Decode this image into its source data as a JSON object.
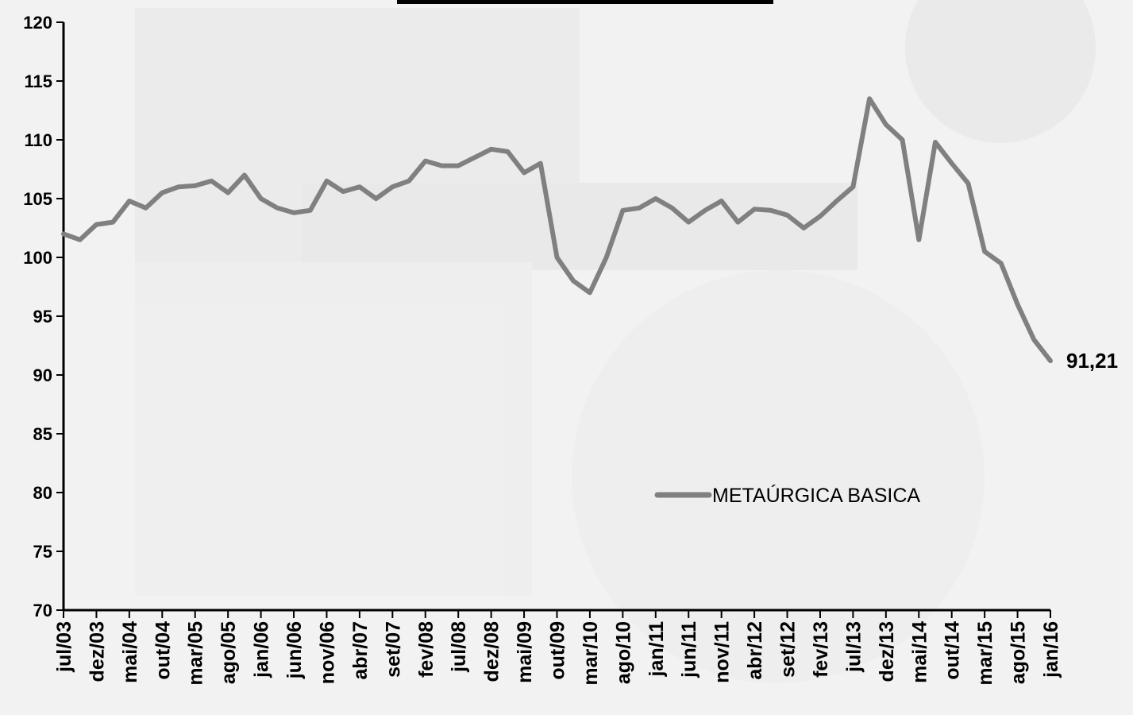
{
  "chart_data": {
    "type": "line",
    "title": "",
    "xlabel": "",
    "ylabel": "",
    "ylim": [
      70,
      120
    ],
    "yticks": [
      "120",
      "115",
      "110",
      "105",
      "100",
      "95",
      "90",
      "85",
      "80",
      "75",
      "70"
    ],
    "xtick_labels": [
      "jul/03",
      "dez/03",
      "mai/04",
      "out/04",
      "mar/05",
      "ago/05",
      "jan/06",
      "jun/06",
      "nov/06",
      "abr/07",
      "set/07",
      "fev/08",
      "jul/08",
      "dez/08",
      "mai/09",
      "out/09",
      "mar/10",
      "ago/10",
      "jan/11",
      "jun/11",
      "nov/11",
      "abr/12",
      "set/12",
      "fev/13",
      "jul/13",
      "dez/13",
      "mai/14",
      "out/14",
      "mar/15",
      "ago/15",
      "jan/16"
    ],
    "legend": {
      "position": "center-right"
    },
    "end_label": "91,21",
    "grid": false,
    "series": [
      {
        "name": "METAÚRGICA BASICA",
        "color": "#808080",
        "x": [
          0,
          0.5,
          1,
          1.5,
          2,
          2.5,
          3,
          3.5,
          4,
          4.5,
          5,
          5.5,
          6,
          6.5,
          7,
          7.5,
          8,
          8.5,
          9,
          9.5,
          10,
          10.5,
          11,
          11.5,
          12,
          12.5,
          13,
          13.5,
          14,
          14.5,
          15,
          15.5,
          16,
          16.5,
          17,
          17.5,
          18,
          18.5,
          19,
          19.5,
          20,
          20.5,
          21,
          21.5,
          22,
          22.5,
          23,
          23.5,
          24,
          24.5,
          25,
          25.5,
          26,
          26.5,
          27,
          27.5,
          28,
          28.5,
          29,
          29.5,
          30
        ],
        "values": [
          102.0,
          101.5,
          102.8,
          103.0,
          104.8,
          104.2,
          105.5,
          106.0,
          106.1,
          106.5,
          105.5,
          107.0,
          105.0,
          104.2,
          103.8,
          104.0,
          106.5,
          105.6,
          106.0,
          105.0,
          106.0,
          106.5,
          108.2,
          107.8,
          107.8,
          108.5,
          109.2,
          109.0,
          107.2,
          108.0,
          100.0,
          98.0,
          97.0,
          100.0,
          104.0,
          104.2,
          105.0,
          104.2,
          103.0,
          104.0,
          104.8,
          103.0,
          104.1,
          104.0,
          103.6,
          102.5,
          103.5,
          104.8,
          106.0,
          113.5,
          111.3,
          110.0,
          101.5,
          109.8,
          108.0,
          106.3,
          100.5,
          99.5,
          96.0,
          93.0,
          91.21
        ]
      }
    ]
  }
}
